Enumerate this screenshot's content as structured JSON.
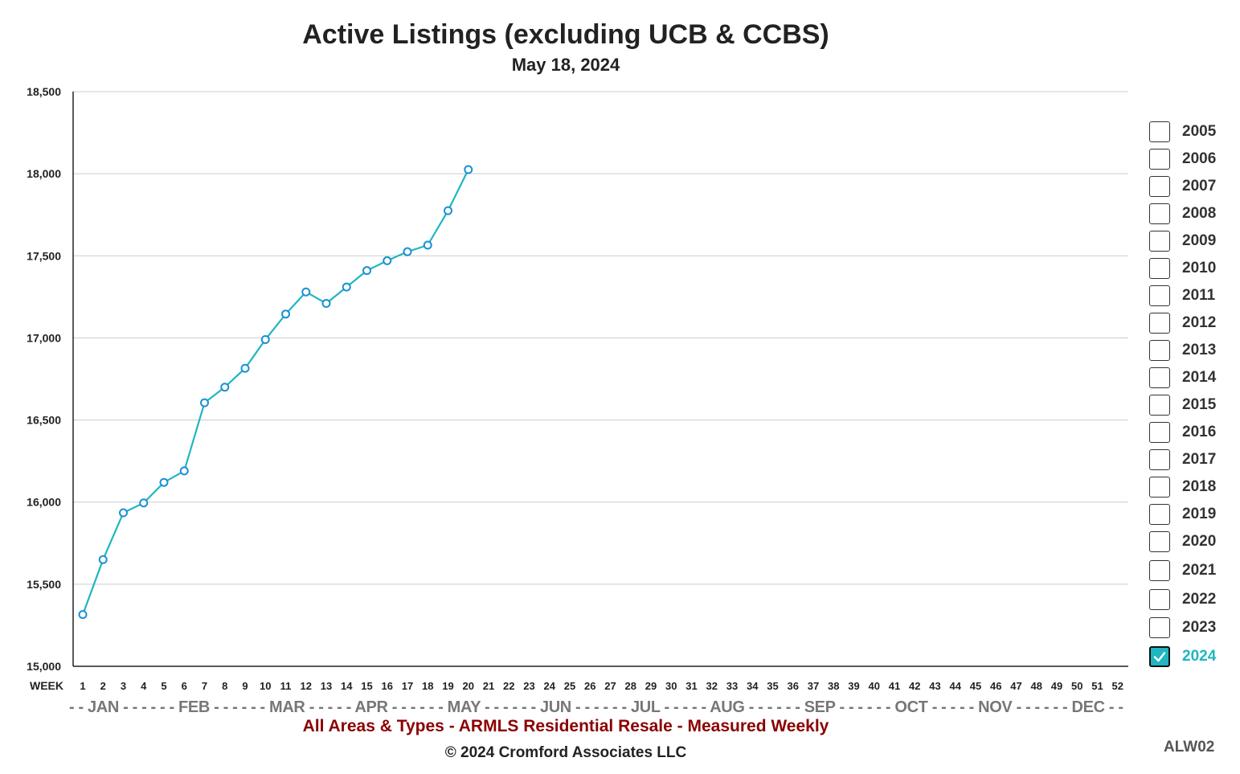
{
  "chart_data": {
    "type": "line",
    "title": "Active Listings (excluding UCB & CCBS)",
    "subtitle": "May 18, 2024",
    "xlabel": "WEEK",
    "x": [
      1,
      2,
      3,
      4,
      5,
      6,
      7,
      8,
      9,
      10,
      11,
      12,
      13,
      14,
      15,
      16,
      17,
      18,
      19,
      20,
      21,
      22,
      23,
      24,
      25,
      26,
      27,
      28,
      29,
      30,
      31,
      32,
      33,
      34,
      35,
      36,
      37,
      38,
      39,
      40,
      41,
      42,
      43,
      44,
      45,
      46,
      47,
      48,
      49,
      50,
      51,
      52
    ],
    "ylim": [
      15000,
      18500
    ],
    "yticks": [
      "15,000",
      "15,500",
      "16,000",
      "16,500",
      "17,000",
      "17,500",
      "18,000",
      "18,500"
    ],
    "month_axis": "- - JAN - - - - - - FEB - - - - - - MAR - - - - - APR - - - - - - MAY - - - - - - JUN - - - - - - JUL - - - - - AUG - - - - - - SEP - - - - - - OCT - - - - - NOV - - - - - - DEC - -",
    "grid": true,
    "series": [
      {
        "name": "2024",
        "color": "#1fb6c1",
        "x": [
          1,
          2,
          3,
          4,
          5,
          6,
          7,
          8,
          9,
          10,
          11,
          12,
          13,
          14,
          15,
          16,
          17,
          18,
          19,
          20
        ],
        "values": [
          15315,
          15650,
          15935,
          15995,
          16120,
          16190,
          16605,
          16700,
          16815,
          16990,
          17145,
          17280,
          17210,
          17310,
          17410,
          17470,
          17525,
          17565,
          17775,
          18025
        ]
      }
    ],
    "legend": {
      "position": "right",
      "items": [
        {
          "label": "2005",
          "checked": false
        },
        {
          "label": "2006",
          "checked": false
        },
        {
          "label": "2007",
          "checked": false
        },
        {
          "label": "2008",
          "checked": false
        },
        {
          "label": "2009",
          "checked": false
        },
        {
          "label": "2010",
          "checked": false
        },
        {
          "label": "2011",
          "checked": false
        },
        {
          "label": "2012",
          "checked": false
        },
        {
          "label": "2013",
          "checked": false
        },
        {
          "label": "2014",
          "checked": false
        },
        {
          "label": "2015",
          "checked": false
        },
        {
          "label": "2016",
          "checked": false
        },
        {
          "label": "2017",
          "checked": false
        },
        {
          "label": "2018",
          "checked": false
        },
        {
          "label": "2019",
          "checked": false
        },
        {
          "label": "2020",
          "checked": false
        },
        {
          "label": "2021",
          "checked": false
        },
        {
          "label": "2022",
          "checked": false
        },
        {
          "label": "2023",
          "checked": false
        },
        {
          "label": "2024",
          "checked": true
        }
      ]
    }
  },
  "footer": {
    "caption": "All Areas & Types - ARMLS Residential Resale - Measured Weekly",
    "copyright": "© 2024 Cromford Associates LLC",
    "chart_code": "ALW02"
  },
  "colors": {
    "line": "#1fb6c1",
    "checkbox_checked": "#1fb6c1",
    "caption": "#8b0000",
    "grid": "#cccccc"
  }
}
